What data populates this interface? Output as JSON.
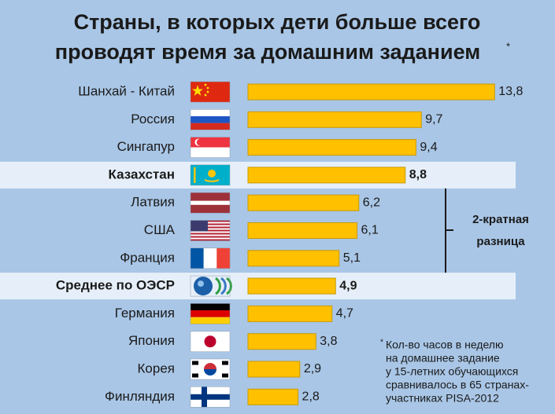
{
  "chart_data": {
    "type": "bar",
    "title": [
      "Страны, в которых дети больше всего",
      "проводят время за домашним заданием"
    ],
    "title_note": "*",
    "categories": [
      "Шанхай - Китай",
      "Россия",
      "Сингапур",
      "Казахстан",
      "Латвия",
      "США",
      "Франция",
      "Среднее по ОЭСР",
      "Германия",
      "Япония",
      "Корея",
      "Финляндия"
    ],
    "values": [
      13.8,
      9.7,
      9.4,
      8.8,
      6.2,
      6.1,
      5.1,
      4.9,
      4.7,
      3.8,
      2.9,
      2.8
    ],
    "value_labels": [
      "13,8",
      "9,7",
      "9,4",
      "8,8",
      "6,2",
      "6,1",
      "5,1",
      "4,9",
      "4,7",
      "3,8",
      "2,9",
      "2,8"
    ],
    "color": "#ffc000",
    "highlight": [
      3,
      7
    ],
    "annotation": [
      "2-кратная",
      "разница"
    ],
    "footnote_mark": "*",
    "footnote": [
      "Кол-во часов в неделю",
      "на домашнее задание",
      "у 15-летних обучающихся",
      "сравнивалось в 65 странах-",
      "участниках PISA-2012"
    ]
  }
}
